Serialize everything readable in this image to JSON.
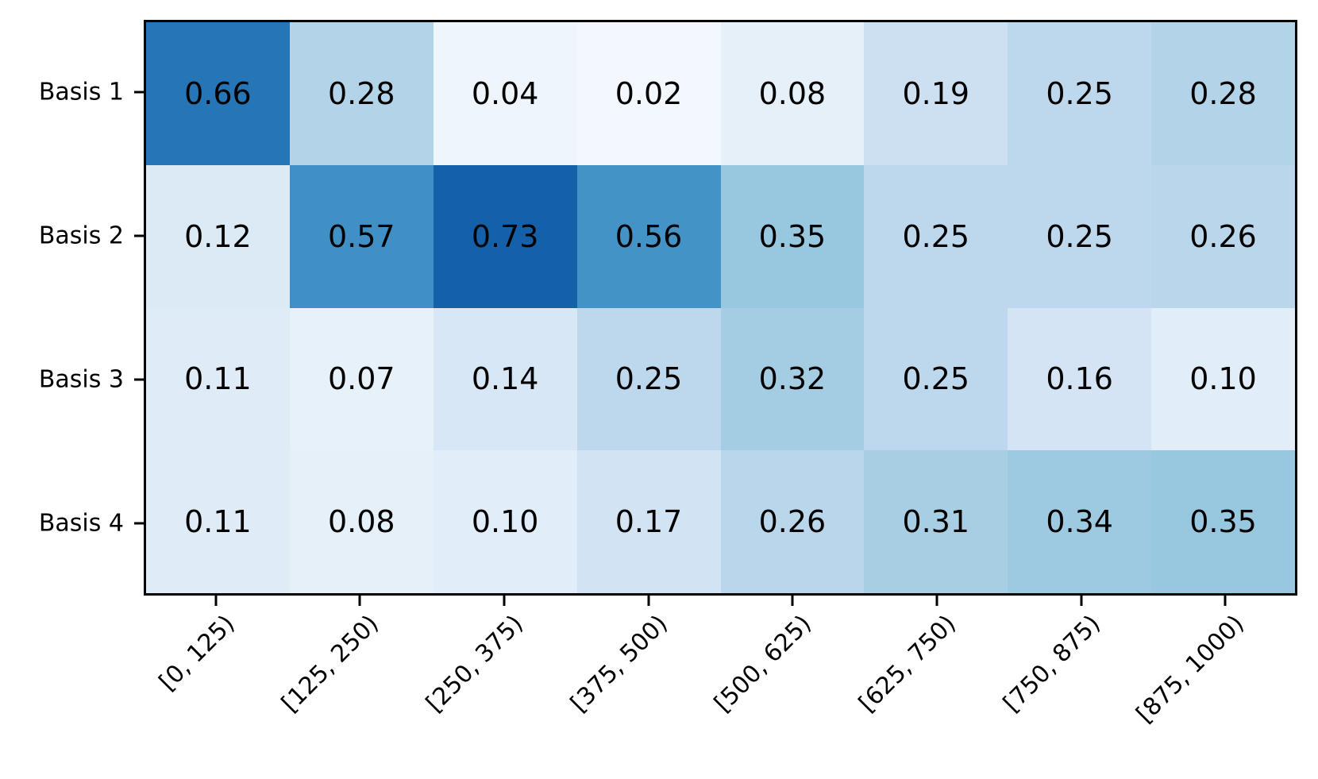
{
  "figure": {
    "background": "#ffffff",
    "axes_border_color": "#000000",
    "tick_color": "#000000",
    "label_color": "#000000"
  },
  "chart_data": {
    "type": "heatmap",
    "title": "",
    "xlabel": "",
    "ylabel": "",
    "rows": [
      "Basis 1",
      "Basis 2",
      "Basis 3",
      "Basis 4"
    ],
    "columns": [
      "[0, 125)",
      "[125, 250)",
      "[250, 375)",
      "[375, 500)",
      "[500, 625)",
      "[625, 750)",
      "[750, 875)",
      "[875, 1000)"
    ],
    "values": [
      [
        0.66,
        0.28,
        0.04,
        0.02,
        0.08,
        0.19,
        0.25,
        0.28
      ],
      [
        0.12,
        0.57,
        0.73,
        0.56,
        0.35,
        0.25,
        0.25,
        0.26
      ],
      [
        0.11,
        0.07,
        0.14,
        0.25,
        0.32,
        0.25,
        0.16,
        0.1
      ],
      [
        0.11,
        0.08,
        0.1,
        0.17,
        0.26,
        0.31,
        0.34,
        0.35
      ]
    ],
    "value_decimals": 2,
    "cell_text_color": "#000000",
    "colormap": {
      "name": "Blues",
      "vmin": 0,
      "vmax": 0.9,
      "stops": [
        [
          0.0,
          "#f7fbff"
        ],
        [
          0.125,
          "#deebf7"
        ],
        [
          0.25,
          "#c6dbef"
        ],
        [
          0.375,
          "#9ecae1"
        ],
        [
          0.5,
          "#6baed6"
        ],
        [
          0.625,
          "#4292c6"
        ],
        [
          0.75,
          "#2171b5"
        ],
        [
          0.875,
          "#08519c"
        ],
        [
          1.0,
          "#08306b"
        ]
      ]
    },
    "x_tick_rotation_deg": 45,
    "legend": "none",
    "grid": "off"
  }
}
